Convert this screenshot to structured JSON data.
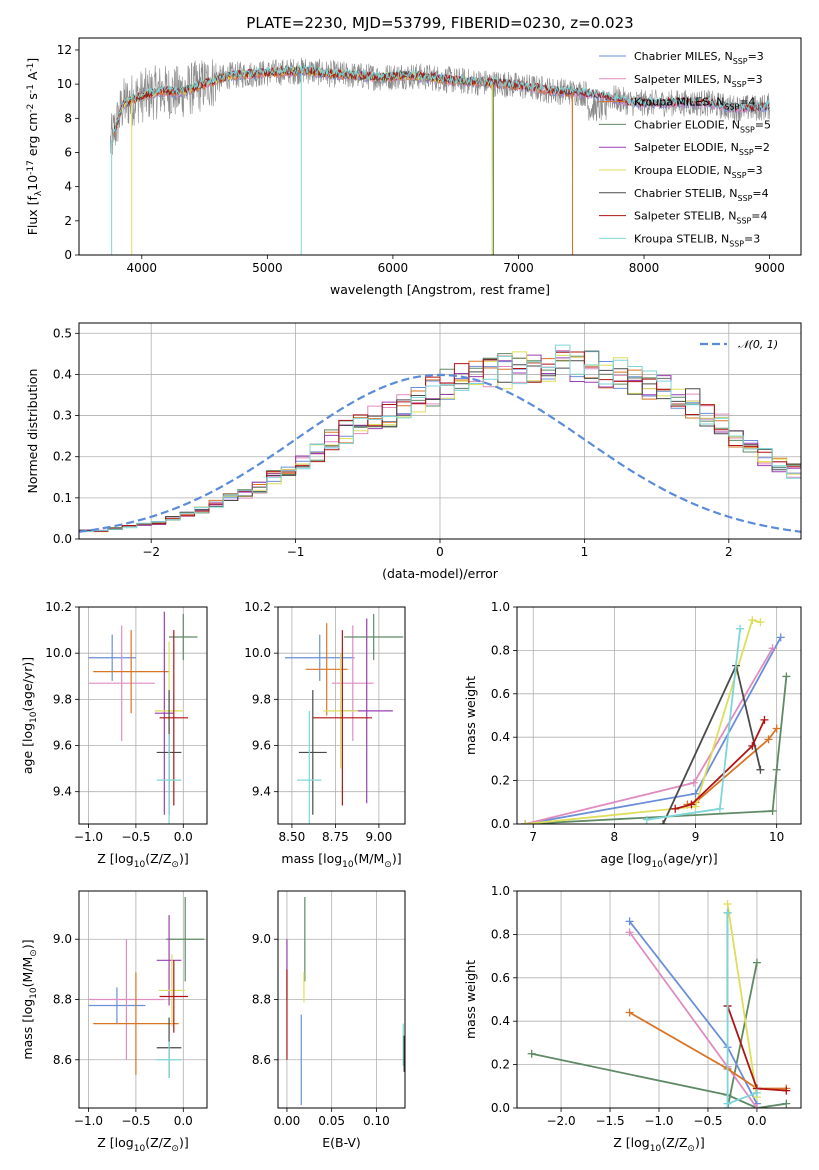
{
  "chart_data": [
    {
      "id": "spectrum",
      "type": "line",
      "title": "PLATE=2230, MJD=53799, FIBERID=0230, z=0.023",
      "xlabel": "wavelength [Angstrom, rest frame]",
      "ylabel": "Flux [f$_\\lambda$10$^{-17}$ erg cm$^{-2}$ s$^{-1}$ A$^{-1}$]",
      "xlim": [
        3500,
        9250
      ],
      "ylim": [
        0,
        12.7
      ],
      "xticks": [
        4000,
        5000,
        6000,
        7000,
        8000,
        9000
      ],
      "yticks": [
        0,
        2,
        4,
        6,
        8,
        10,
        12
      ],
      "grid": false,
      "legend_position": "upper right",
      "observed_continuum": {
        "x": [
          3750,
          3850,
          3950,
          4050,
          4150,
          4300,
          4500,
          4700,
          4900,
          5100,
          5300,
          5500,
          5700,
          5900,
          6100,
          6300,
          6500,
          6700,
          6900,
          7100,
          7300,
          7500,
          7700,
          7900,
          8100,
          8300,
          8500,
          8700,
          8900,
          9000
        ],
        "y": [
          6.5,
          8.8,
          9.2,
          9.4,
          9.6,
          9.5,
          10.0,
          10.5,
          10.6,
          10.7,
          10.8,
          10.6,
          10.5,
          10.4,
          10.5,
          10.4,
          10.2,
          10.1,
          10.0,
          9.8,
          9.6,
          9.5,
          9.3,
          8.9,
          8.9,
          8.9,
          8.9,
          8.6,
          8.6,
          8.7
        ]
      },
      "series": [
        {
          "name": "Chabrier MILES, N$_{SSP}$=3",
          "color": "#6a8fd8",
          "end": 9000
        },
        {
          "name": "Salpeter MILES, N$_{SSP}$=3",
          "color": "#e08cc0",
          "end": 9000
        },
        {
          "name": "Kroupa MILES, N$_{SSP}$=4",
          "color": "#d97425",
          "end": 7430
        },
        {
          "name": "Chabrier ELODIE, N$_{SSP}$=5",
          "color": "#5f8a65",
          "end": 6800
        },
        {
          "name": "Salpeter ELODIE, N$_{SSP}$=2",
          "color": "#9a3eb4",
          "end": 6800
        },
        {
          "name": "Kroupa ELODIE, N$_{SSP}$=3",
          "color": "#dede5a",
          "end": 6800
        },
        {
          "name": "Chabrier STELIB, N$_{SSP}$=4",
          "color": "#4a4a4a",
          "end": 9000
        },
        {
          "name": "Salpeter STELIB, N$_{SSP}$=4",
          "color": "#b01414",
          "end": 9000
        },
        {
          "name": "Kroupa STELIB, N$_{SSP}$=3",
          "color": "#7fd6d8",
          "end": 9000
        }
      ]
    },
    {
      "id": "residuals",
      "type": "line",
      "xlabel": "(data-model)/error",
      "ylabel": "Normed distribution",
      "xlim": [
        -2.5,
        2.5
      ],
      "ylim": [
        0,
        0.525
      ],
      "xticks": [
        -2,
        -1,
        0,
        1,
        2
      ],
      "xticklabels": [
        "−2",
        "−1",
        "0",
        "1",
        "2"
      ],
      "yticks": [
        0.0,
        0.1,
        0.2,
        0.3,
        0.4,
        0.5
      ],
      "yticklabels": [
        "0.0",
        "0.1",
        "0.2",
        "0.3",
        "0.4",
        "0.5"
      ],
      "grid": true,
      "legend": {
        "label": "𝒩(0, 1)",
        "position": "upper right",
        "color": "#5b8bd9"
      },
      "bin_width": 0.1,
      "hist_base": [
        0.02,
        0.02,
        0.025,
        0.03,
        0.035,
        0.04,
        0.05,
        0.06,
        0.07,
        0.085,
        0.1,
        0.11,
        0.125,
        0.15,
        0.16,
        0.19,
        0.21,
        0.24,
        0.26,
        0.28,
        0.3,
        0.3,
        0.32,
        0.34,
        0.36,
        0.38,
        0.39,
        0.4,
        0.41,
        0.41,
        0.42,
        0.41,
        0.43,
        0.44,
        0.43,
        0.42,
        0.41,
        0.4,
        0.39,
        0.37,
        0.36,
        0.34,
        0.33,
        0.3,
        0.28,
        0.25,
        0.23,
        0.2,
        0.18,
        0.165,
        0.15,
        0.14,
        0.13,
        0.12,
        0.11,
        0.1,
        0.09,
        0.075,
        0.065,
        0.055,
        0.045,
        0.04,
        0.035,
        0.03,
        0.025,
        0.022,
        0.02,
        0.02,
        0.02,
        0.018
      ]
    },
    {
      "id": "age_vs_Z",
      "type": "scatter",
      "xlabel": "Z [log$_{10}$(Z/Z$_\\odot$)]",
      "ylabel": "age  [log$_{10}$(age/yr)]",
      "xlim": [
        -1.1,
        0.25
      ],
      "ylim": [
        9.26,
        10.2
      ],
      "xticks": [
        -1.0,
        -0.5,
        0.0
      ],
      "xticklabels": [
        "−1.0",
        "−0.5",
        "0.0"
      ],
      "yticks": [
        9.4,
        9.6,
        9.8,
        10.0,
        10.2
      ],
      "yticklabels": [
        "9.4",
        "9.6",
        "9.8",
        "10.0",
        "10.2"
      ],
      "grid": true,
      "points": [
        {
          "c": 0,
          "x": -0.75,
          "y": 9.98,
          "xerr": 0.25,
          "yerr": 0.1
        },
        {
          "c": 1,
          "x": -0.65,
          "y": 9.87,
          "xerr": 0.35,
          "yerr": 0.25
        },
        {
          "c": 2,
          "x": -0.55,
          "y": 9.92,
          "xerr": 0.4,
          "yerr": 0.18
        },
        {
          "c": 3,
          "x": 0.0,
          "y": 10.07,
          "xerr": 0.15,
          "yerr": 0.1
        },
        {
          "c": 4,
          "x": -0.2,
          "y": 9.74,
          "xerr": 0.1,
          "yerr": 0.44
        },
        {
          "c": 5,
          "x": -0.15,
          "y": 9.75,
          "xerr": 0.15,
          "yerr": 0.3
        },
        {
          "c": 6,
          "x": -0.15,
          "y": 9.57,
          "xerr": 0.13,
          "yerr": 0.27
        },
        {
          "c": 7,
          "x": -0.1,
          "y": 9.72,
          "xerr": 0.15,
          "yerr": 0.38
        },
        {
          "c": 8,
          "x": -0.15,
          "y": 9.45,
          "xerr": 0.13,
          "yerr": 0.2
        }
      ]
    },
    {
      "id": "age_vs_mass",
      "type": "scatter",
      "xlabel": "mass [log$_{10}$(M/M$_\\odot$)]",
      "ylabel": "",
      "xlim": [
        8.42,
        9.15
      ],
      "ylim": [
        9.26,
        10.2
      ],
      "xticks": [
        8.5,
        8.75,
        9.0
      ],
      "xticklabels": [
        "8.50",
        "8.75",
        "9.00"
      ],
      "yticks": [
        9.4,
        9.6,
        9.8,
        10.0,
        10.2
      ],
      "yticklabels": [
        "9.4",
        "9.6",
        "9.8",
        "10.0",
        "10.2"
      ],
      "grid": true,
      "points": [
        {
          "c": 0,
          "x": 8.66,
          "y": 9.98,
          "xerr": 0.2,
          "yerr": 0.1
        },
        {
          "c": 1,
          "x": 8.85,
          "y": 9.87,
          "xerr": 0.12,
          "yerr": 0.25
        },
        {
          "c": 2,
          "x": 8.7,
          "y": 9.93,
          "xerr": 0.12,
          "yerr": 0.2
        },
        {
          "c": 3,
          "x": 8.97,
          "y": 10.07,
          "xerr": 0.17,
          "yerr": 0.1
        },
        {
          "c": 4,
          "x": 8.93,
          "y": 9.75,
          "xerr": 0.15,
          "yerr": 0.4
        },
        {
          "c": 5,
          "x": 8.78,
          "y": 9.75,
          "xerr": 0.1,
          "yerr": 0.25
        },
        {
          "c": 6,
          "x": 8.62,
          "y": 9.57,
          "xerr": 0.08,
          "yerr": 0.27
        },
        {
          "c": 7,
          "x": 8.79,
          "y": 9.72,
          "xerr": 0.17,
          "yerr": 0.38
        },
        {
          "c": 8,
          "x": 8.6,
          "y": 9.45,
          "xerr": 0.07,
          "yerr": 0.3
        }
      ]
    },
    {
      "id": "mass_vs_Z",
      "type": "scatter",
      "xlabel": "Z [log$_{10}$(Z/Z$_\\odot$)]",
      "ylabel": "mass [log$_{10}$(M/M$_\\odot$)]",
      "xlim": [
        -1.1,
        0.25
      ],
      "ylim": [
        8.44,
        9.16
      ],
      "xticks": [
        -1.0,
        -0.5,
        0.0
      ],
      "xticklabels": [
        "−1.0",
        "−0.5",
        "0.0"
      ],
      "yticks": [
        8.6,
        8.8,
        9.0
      ],
      "yticklabels": [
        "8.6",
        "8.8",
        "9.0"
      ],
      "grid": true,
      "points": [
        {
          "c": 0,
          "x": -0.7,
          "y": 8.78,
          "xerr": 0.3,
          "yerr": 0.06
        },
        {
          "c": 1,
          "x": -0.6,
          "y": 8.8,
          "xerr": 0.4,
          "yerr": 0.2
        },
        {
          "c": 2,
          "x": -0.5,
          "y": 8.72,
          "xerr": 0.45,
          "yerr": 0.17
        },
        {
          "c": 3,
          "x": 0.02,
          "y": 9.0,
          "xerr": 0.2,
          "yerr": 0.14
        },
        {
          "c": 4,
          "x": -0.15,
          "y": 8.93,
          "xerr": 0.13,
          "yerr": 0.15
        },
        {
          "c": 5,
          "x": -0.12,
          "y": 8.83,
          "xerr": 0.14,
          "yerr": 0.12
        },
        {
          "c": 6,
          "x": -0.15,
          "y": 8.64,
          "xerr": 0.13,
          "yerr": 0.1
        },
        {
          "c": 7,
          "x": -0.1,
          "y": 8.81,
          "xerr": 0.15,
          "yerr": 0.12
        },
        {
          "c": 8,
          "x": -0.15,
          "y": 8.6,
          "xerr": 0.13,
          "yerr": 0.06
        }
      ]
    },
    {
      "id": "mass_vs_ebv",
      "type": "scatter",
      "xlabel": "E(B-V)",
      "ylabel": "",
      "xlim": [
        -0.01,
        0.132
      ],
      "ylim": [
        8.44,
        9.16
      ],
      "xticks": [
        0.0,
        0.05,
        0.1
      ],
      "xticklabels": [
        "0.00",
        "0.05",
        "0.10"
      ],
      "yticks": [
        8.6,
        8.8,
        9.0
      ],
      "yticklabels": [
        "8.6",
        "8.8",
        "9.0"
      ],
      "grid": true,
      "points": [
        {
          "c": 4,
          "x": 0.0,
          "y": 8.9,
          "xerr": 0,
          "yerr": 0.1
        },
        {
          "c": 7,
          "x": 0.0,
          "y": 8.75,
          "xerr": 0,
          "yerr": 0.15
        },
        {
          "c": 0,
          "x": 0.016,
          "y": 8.6,
          "xerr": 0,
          "yerr": 0.15
        },
        {
          "c": 3,
          "x": 0.02,
          "y": 9.0,
          "xerr": 0,
          "yerr": 0.14
        },
        {
          "c": 5,
          "x": 0.019,
          "y": 8.84,
          "xerr": 0,
          "yerr": 0.05
        },
        {
          "c": 8,
          "x": 0.13,
          "y": 8.65,
          "xerr": 0,
          "yerr": 0.07
        },
        {
          "c": 6,
          "x": 0.131,
          "y": 8.62,
          "xerr": 0,
          "yerr": 0.06
        }
      ]
    },
    {
      "id": "weight_vs_age",
      "type": "line",
      "xlabel": "age  [log$_{10}$(age/yr)]",
      "ylabel": "mass weight",
      "xlim": [
        6.8,
        10.3
      ],
      "ylim": [
        0.0,
        1.0
      ],
      "xticks": [
        7,
        8,
        9,
        10
      ],
      "xticklabels": [
        "7",
        "8",
        "9",
        "10"
      ],
      "yticks": [
        0.0,
        0.2,
        0.4,
        0.6,
        0.8,
        1.0
      ],
      "yticklabels": [
        "0.0",
        "0.2",
        "0.4",
        "0.6",
        "0.8",
        "1.0"
      ],
      "grid": true,
      "series": [
        {
          "c": 0,
          "x": [
            6.9,
            9.0,
            10.05
          ],
          "y": [
            0.0,
            0.14,
            0.86
          ]
        },
        {
          "c": 1,
          "x": [
            6.9,
            8.98,
            9.95
          ],
          "y": [
            0.0,
            0.19,
            0.81
          ]
        },
        {
          "c": 2,
          "x": [
            8.9,
            9.0,
            9.9,
            10.0
          ],
          "y": [
            0.09,
            0.1,
            0.39,
            0.44
          ]
        },
        {
          "c": 3,
          "x": [
            6.9,
            9.95,
            10.0,
            10.12
          ],
          "y": [
            0.0,
            0.06,
            0.25,
            0.68
          ]
        },
        {
          "c": 5,
          "x": [
            6.9,
            9.0,
            9.7,
            9.8
          ],
          "y": [
            0.0,
            0.08,
            0.94,
            0.93
          ]
        },
        {
          "c": 6,
          "x": [
            8.6,
            9.5,
            9.8
          ],
          "y": [
            0.0,
            0.73,
            0.25
          ]
        },
        {
          "c": 7,
          "x": [
            8.75,
            8.95,
            9.7,
            9.85
          ],
          "y": [
            0.07,
            0.09,
            0.36,
            0.48
          ]
        },
        {
          "c": 8,
          "x": [
            8.4,
            9.3,
            9.55
          ],
          "y": [
            0.02,
            0.07,
            0.9
          ]
        }
      ]
    },
    {
      "id": "weight_vs_Z",
      "type": "line",
      "xlabel": "Z [log$_{10}$(Z/Z$_\\odot$)]",
      "ylabel": "mass weight",
      "xlim": [
        -2.45,
        0.45
      ],
      "ylim": [
        0.0,
        1.0
      ],
      "xticks": [
        -2.0,
        -1.5,
        -1.0,
        -0.5,
        0.0
      ],
      "xticklabels": [
        "−2.0",
        "−1.5",
        "−1.0",
        "−0.5",
        "0.0"
      ],
      "yticks": [
        0.0,
        0.2,
        0.4,
        0.6,
        0.8,
        1.0
      ],
      "yticklabels": [
        "0.0",
        "0.2",
        "0.4",
        "0.6",
        "0.8",
        "1.0"
      ],
      "grid": true,
      "series": [
        {
          "c": 3,
          "x": [
            -2.3,
            -0.3,
            0.0,
            0.3
          ],
          "y": [
            0.25,
            0.06,
            0.0,
            0.02
          ]
        },
        {
          "c": 3,
          "x": [
            -0.3,
            0.0
          ],
          "y": [
            0.0,
            0.67
          ]
        },
        {
          "c": 0,
          "x": [
            -1.3,
            -0.3,
            0.0
          ],
          "y": [
            0.86,
            0.28,
            0.02
          ]
        },
        {
          "c": 1,
          "x": [
            -1.3,
            -0.3,
            0.0
          ],
          "y": [
            0.81,
            0.19,
            0.0
          ]
        },
        {
          "c": 2,
          "x": [
            -1.3,
            -0.3,
            0.0,
            0.3
          ],
          "y": [
            0.44,
            0.18,
            0.09,
            0.09
          ]
        },
        {
          "c": 5,
          "x": [
            -0.3,
            0.0
          ],
          "y": [
            0.94,
            0.05
          ]
        },
        {
          "c": 6,
          "x": [
            -0.3,
            -0.3
          ],
          "y": [
            0.9,
            0.47
          ]
        },
        {
          "c": 7,
          "x": [
            -0.3,
            0.0,
            0.3
          ],
          "y": [
            0.47,
            0.09,
            0.08
          ]
        },
        {
          "c": 8,
          "x": [
            -0.3,
            -0.3,
            0.0
          ],
          "y": [
            0.9,
            0.02,
            0.07
          ]
        }
      ]
    }
  ]
}
